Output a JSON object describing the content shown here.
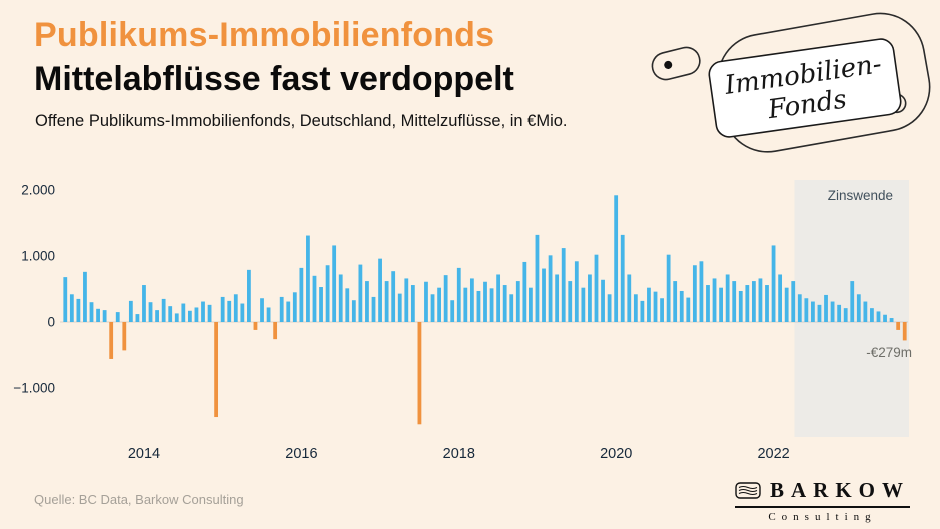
{
  "header": {
    "title": "Publikums-Immobilienfonds",
    "subtitle": "Mittelabflüsse fast verdoppelt",
    "description": "Offene Publikums-Immobilienfonds, Deutschland, Mittelzuflüsse, in €Mio."
  },
  "tag": {
    "line1": "Immobilien-",
    "line2": "Fonds"
  },
  "annotations": {
    "zinswende": "Zinswende",
    "last_value": "-€279m"
  },
  "footer": {
    "source": "Quelle: BC Data, Barkow Consulting"
  },
  "logo": {
    "name": "BARKOW",
    "sub": "Consulting"
  },
  "colors": {
    "background": "#fcf1e4",
    "positive": "#45b5e8",
    "negative": "#f0923e",
    "region": "#e8eae7",
    "axis_text": "#16283a",
    "baseline": "rgba(0,0,0,0.12)"
  },
  "chart_data": {
    "type": "bar",
    "title": "Offene Publikums-Immobilienfonds, Deutschland, Mittelzuflüsse, in €Mio.",
    "unit": "€Mio.",
    "ylim": [
      -1700,
      2100
    ],
    "yticks": [
      -1000,
      0,
      1000,
      2000
    ],
    "ytick_labels": [
      "−1.000",
      "0",
      "1.000",
      "2.000"
    ],
    "xtick_labels": [
      "2014",
      "2016",
      "2018",
      "2020",
      "2022"
    ],
    "highlight_region": {
      "label": "Zinswende",
      "start": "2022-05",
      "end": "2023-09"
    },
    "last_point_label": "-€279m",
    "x": [
      "2013-01",
      "2013-02",
      "2013-03",
      "2013-04",
      "2013-05",
      "2013-06",
      "2013-07",
      "2013-08",
      "2013-09",
      "2013-10",
      "2013-11",
      "2013-12",
      "2014-01",
      "2014-02",
      "2014-03",
      "2014-04",
      "2014-05",
      "2014-06",
      "2014-07",
      "2014-08",
      "2014-09",
      "2014-10",
      "2014-11",
      "2014-12",
      "2015-01",
      "2015-02",
      "2015-03",
      "2015-04",
      "2015-05",
      "2015-06",
      "2015-07",
      "2015-08",
      "2015-09",
      "2015-10",
      "2015-11",
      "2015-12",
      "2016-01",
      "2016-02",
      "2016-03",
      "2016-04",
      "2016-05",
      "2016-06",
      "2016-07",
      "2016-08",
      "2016-09",
      "2016-10",
      "2016-11",
      "2016-12",
      "2017-01",
      "2017-02",
      "2017-03",
      "2017-04",
      "2017-05",
      "2017-06",
      "2017-07",
      "2017-08",
      "2017-09",
      "2017-10",
      "2017-11",
      "2017-12",
      "2018-01",
      "2018-02",
      "2018-03",
      "2018-04",
      "2018-05",
      "2018-06",
      "2018-07",
      "2018-08",
      "2018-09",
      "2018-10",
      "2018-11",
      "2018-12",
      "2019-01",
      "2019-02",
      "2019-03",
      "2019-04",
      "2019-05",
      "2019-06",
      "2019-07",
      "2019-08",
      "2019-09",
      "2019-10",
      "2019-11",
      "2019-12",
      "2020-01",
      "2020-02",
      "2020-03",
      "2020-04",
      "2020-05",
      "2020-06",
      "2020-07",
      "2020-08",
      "2020-09",
      "2020-10",
      "2020-11",
      "2020-12",
      "2021-01",
      "2021-02",
      "2021-03",
      "2021-04",
      "2021-05",
      "2021-06",
      "2021-07",
      "2021-08",
      "2021-09",
      "2021-10",
      "2021-11",
      "2021-12",
      "2022-01",
      "2022-02",
      "2022-03",
      "2022-04",
      "2022-05",
      "2022-06",
      "2022-07",
      "2022-08",
      "2022-09",
      "2022-10",
      "2022-11",
      "2022-12",
      "2023-01",
      "2023-02",
      "2023-03",
      "2023-04",
      "2023-05",
      "2023-06",
      "2023-07",
      "2023-08",
      "2023-09"
    ],
    "values": [
      680,
      420,
      350,
      760,
      300,
      200,
      180,
      -560,
      150,
      -430,
      320,
      120,
      560,
      300,
      180,
      350,
      240,
      130,
      280,
      170,
      220,
      310,
      260,
      -1440,
      380,
      320,
      420,
      280,
      790,
      -120,
      360,
      220,
      -260,
      380,
      310,
      450,
      820,
      1310,
      700,
      530,
      860,
      1160,
      720,
      510,
      330,
      870,
      620,
      380,
      960,
      620,
      770,
      430,
      660,
      560,
      -1550,
      610,
      420,
      520,
      710,
      330,
      820,
      520,
      660,
      470,
      610,
      510,
      720,
      560,
      420,
      620,
      910,
      520,
      1320,
      810,
      1010,
      720,
      1120,
      620,
      920,
      520,
      720,
      1020,
      640,
      420,
      1920,
      1320,
      720,
      420,
      320,
      520,
      460,
      360,
      1020,
      620,
      470,
      370,
      860,
      920,
      560,
      660,
      520,
      720,
      620,
      470,
      560,
      620,
      660,
      560,
      1160,
      720,
      520,
      620,
      420,
      360,
      310,
      260,
      410,
      310,
      260,
      210,
      620,
      420,
      310,
      210,
      160,
      110,
      60,
      -120,
      -279
    ]
  }
}
